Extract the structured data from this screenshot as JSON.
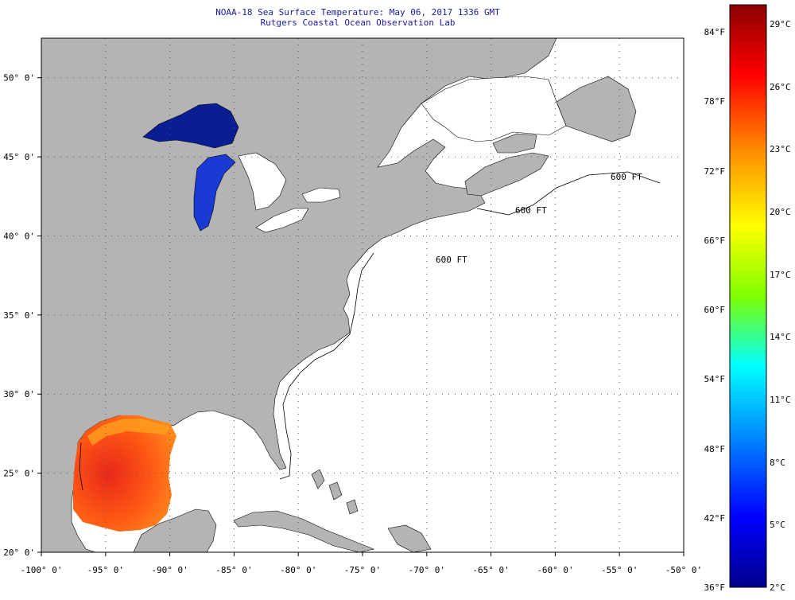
{
  "title": {
    "line1": "NOAA-18 Sea Surface Temperature:  May 06, 2017 1336 GMT",
    "line2": "Rutgers Coastal Ocean Observation Lab"
  },
  "map": {
    "lon_range": [
      -100,
      -50
    ],
    "lat_range": [
      20,
      52.5
    ],
    "lon_ticks": [
      "-100° 0'",
      "-95° 0'",
      "-90° 0'",
      "-85° 0'",
      "-80° 0'",
      "-75° 0'",
      "-70° 0'",
      "-65° 0'",
      "-60° 0'",
      "-55° 0'",
      "-50° 0'"
    ],
    "lat_ticks": [
      "20° 0'",
      "25° 0'",
      "30° 0'",
      "35° 0'",
      "40° 0'",
      "45° 0'",
      "50° 0'"
    ],
    "isobath_label": "600 FT",
    "land_color": "#b4b4b4",
    "ocean_color": "#ffffff",
    "grid": "dotted"
  },
  "colorbar": {
    "fahrenheit_labels": [
      "84°F",
      "78°F",
      "72°F",
      "66°F",
      "60°F",
      "54°F",
      "48°F",
      "42°F",
      "36°F"
    ],
    "celsius_labels": [
      "29°C",
      "26°C",
      "23°C",
      "20°C",
      "17°C",
      "14°C",
      "11°C",
      "8°C",
      "5°C",
      "2°C"
    ],
    "colors": [
      "#8b0000",
      "#ff0000",
      "#ff8c00",
      "#ffff00",
      "#7fff00",
      "#00ffff",
      "#0080ff",
      "#0000ff",
      "#00008b"
    ]
  }
}
